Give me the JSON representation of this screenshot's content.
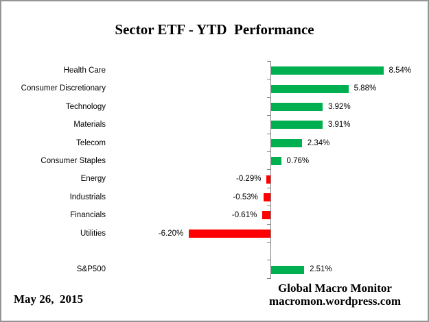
{
  "title": "Sector ETF - YTD  Performance",
  "footer": {
    "date": "May 26,  2015",
    "credit_line1": "Global Macro Monitor",
    "credit_line2": "macromon.wordpress.com"
  },
  "chart_data": {
    "type": "bar",
    "orientation": "horizontal",
    "title": "Sector ETF - YTD  Performance",
    "categories": [
      "Health Care",
      "Consumer Discretionary",
      "Technology",
      "Materials",
      "Telecom",
      "Consumer Staples",
      "Energy",
      "Industrials",
      "Financials",
      "Utilities",
      "S&P500"
    ],
    "values": [
      8.54,
      5.88,
      3.92,
      3.91,
      2.34,
      0.76,
      -0.29,
      -0.53,
      -0.61,
      -6.2,
      2.51
    ],
    "value_labels": [
      "8.54%",
      "5.88%",
      "3.92%",
      "3.91%",
      "2.34%",
      "0.76%",
      "-0.29%",
      "-0.53%",
      "-0.61%",
      "-6.20%",
      "2.51%"
    ],
    "gap_after_index": 9,
    "colors": {
      "positive": "#00B050",
      "negative": "#FF0000",
      "axis": "#808080"
    },
    "xlabel": "",
    "ylabel": "",
    "grid": false,
    "legend": false,
    "axis_value_labels_shown": false
  }
}
